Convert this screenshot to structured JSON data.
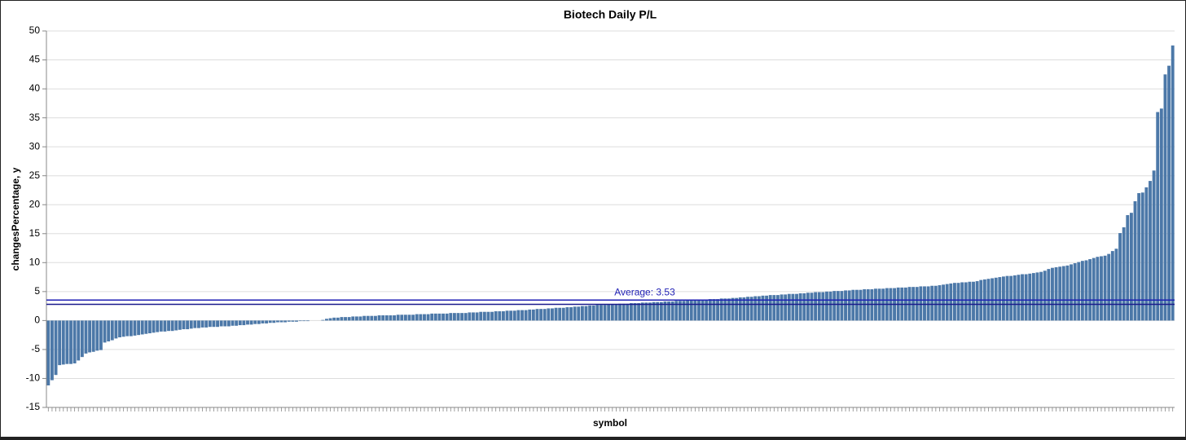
{
  "chart_data": {
    "type": "bar",
    "title": "Biotech Daily P/L",
    "x_label": "symbol",
    "y_label": "changesPercentage, y",
    "color": "#4c78a8",
    "grid": true,
    "ylim": [
      -15,
      50
    ],
    "yticks": [
      -15,
      -10,
      -5,
      0,
      5,
      10,
      15,
      20,
      25,
      30,
      35,
      40,
      45,
      50
    ],
    "rules": [
      {
        "value": 3.53,
        "label": "Average: 3.53",
        "color": "#1f1fb4"
      },
      {
        "value": 2.8,
        "color": "#1a1a8c"
      }
    ],
    "categories": [
      null,
      null,
      null,
      null,
      null,
      null,
      null,
      null,
      null,
      null,
      null,
      null,
      null,
      null,
      null,
      null,
      null,
      null,
      null,
      null,
      null,
      null,
      null,
      null,
      null,
      null,
      null,
      null,
      null,
      null,
      null,
      null,
      null,
      null,
      null,
      null,
      null,
      null,
      null,
      null,
      null,
      null,
      null,
      null,
      null,
      null,
      null,
      null,
      null,
      null,
      null,
      null,
      null,
      null,
      null,
      null,
      null,
      null,
      null,
      null,
      null,
      null,
      null,
      null,
      null,
      null,
      null,
      null,
      null,
      null,
      null,
      null,
      null,
      null,
      null,
      null,
      null,
      null,
      null,
      null,
      null,
      null,
      null,
      null,
      null,
      null,
      null,
      null,
      null,
      null,
      null,
      null,
      null,
      null,
      null,
      null,
      null,
      null,
      null,
      null,
      null,
      null,
      null,
      null,
      null,
      null,
      null,
      null,
      null,
      null,
      null,
      null,
      null,
      null,
      null,
      null,
      null,
      null,
      null,
      null,
      null,
      null,
      null,
      null,
      null,
      null,
      null,
      null,
      null,
      null,
      null,
      null,
      null,
      null,
      null,
      null,
      null,
      null,
      null,
      null,
      null,
      null,
      null,
      null,
      null,
      null,
      null,
      null,
      null,
      null,
      null,
      null,
      null,
      null,
      null,
      null,
      null,
      null,
      null,
      null,
      null,
      null,
      null,
      null,
      null,
      null,
      null,
      null,
      null,
      null,
      null,
      null,
      null,
      null,
      null,
      null,
      null,
      null,
      null,
      null,
      null,
      null,
      null,
      null,
      null,
      null,
      null,
      null,
      null,
      null,
      null,
      null,
      null,
      null,
      null,
      null,
      null,
      null,
      null,
      null,
      null,
      null,
      null,
      null,
      null,
      null,
      null,
      null,
      null,
      null,
      null,
      null,
      null,
      null,
      null,
      null,
      null,
      null,
      null,
      null,
      null,
      null,
      null,
      null,
      null,
      null,
      null,
      null,
      null,
      null,
      null,
      null,
      null,
      null,
      null,
      null,
      null,
      null,
      null,
      null,
      null,
      null,
      null,
      null,
      null,
      null,
      null,
      null,
      null,
      null,
      null,
      null,
      null,
      null,
      null,
      null,
      null,
      null,
      null,
      null,
      null,
      null,
      null,
      null,
      null,
      null,
      null,
      null,
      null,
      null,
      null,
      null,
      null,
      null,
      null,
      null,
      null,
      null,
      null,
      null,
      null,
      null,
      null,
      null,
      null,
      null,
      null,
      null,
      null,
      null,
      null,
      null,
      null,
      null,
      null,
      null,
      null,
      null,
      null,
      null
    ],
    "values": [
      -11.2,
      -10.3,
      -9.4,
      -7.7,
      -7.6,
      -7.5,
      -7.5,
      -7.4,
      -6.9,
      -6.3,
      -5.7,
      -5.5,
      -5.4,
      -5.2,
      -5.1,
      -3.8,
      -3.6,
      -3.4,
      -3.1,
      -2.9,
      -2.8,
      -2.7,
      -2.7,
      -2.6,
      -2.5,
      -2.4,
      -2.3,
      -2.2,
      -2.1,
      -2.0,
      -1.9,
      -1.9,
      -1.8,
      -1.8,
      -1.7,
      -1.6,
      -1.5,
      -1.5,
      -1.4,
      -1.3,
      -1.3,
      -1.2,
      -1.2,
      -1.1,
      -1.1,
      -1.1,
      -1.0,
      -1.0,
      -1.0,
      -0.9,
      -0.9,
      -0.8,
      -0.8,
      -0.7,
      -0.7,
      -0.6,
      -0.6,
      -0.5,
      -0.5,
      -0.4,
      -0.4,
      -0.3,
      -0.3,
      -0.3,
      -0.2,
      -0.2,
      -0.2,
      -0.1,
      -0.1,
      -0.1,
      0,
      0,
      0,
      0.1,
      0.3,
      0.4,
      0.5,
      0.5,
      0.6,
      0.6,
      0.6,
      0.7,
      0.7,
      0.7,
      0.8,
      0.8,
      0.8,
      0.8,
      0.9,
      0.9,
      0.9,
      0.9,
      0.9,
      1.0,
      1.0,
      1.0,
      1.0,
      1.0,
      1.1,
      1.1,
      1.1,
      1.1,
      1.2,
      1.2,
      1.2,
      1.2,
      1.2,
      1.3,
      1.3,
      1.3,
      1.3,
      1.3,
      1.4,
      1.4,
      1.4,
      1.5,
      1.5,
      1.5,
      1.5,
      1.6,
      1.6,
      1.6,
      1.7,
      1.7,
      1.7,
      1.8,
      1.8,
      1.8,
      1.9,
      1.9,
      2.0,
      2.0,
      2.0,
      2.1,
      2.1,
      2.2,
      2.2,
      2.2,
      2.3,
      2.3,
      2.4,
      2.4,
      2.5,
      2.5,
      2.6,
      2.6,
      2.7,
      2.7,
      2.7,
      2.8,
      2.8,
      2.8,
      2.9,
      2.9,
      2.9,
      3.0,
      3.0,
      3.0,
      3.1,
      3.1,
      3.1,
      3.2,
      3.2,
      3.2,
      3.3,
      3.3,
      3.3,
      3.4,
      3.4,
      3.4,
      3.5,
      3.5,
      3.5,
      3.6,
      3.6,
      3.6,
      3.7,
      3.7,
      3.7,
      3.8,
      3.8,
      3.8,
      3.9,
      3.9,
      4.0,
      4.0,
      4.1,
      4.1,
      4.2,
      4.2,
      4.3,
      4.3,
      4.4,
      4.4,
      4.4,
      4.5,
      4.5,
      4.6,
      4.6,
      4.6,
      4.7,
      4.7,
      4.8,
      4.8,
      4.9,
      4.9,
      4.9,
      5.0,
      5.0,
      5.1,
      5.1,
      5.1,
      5.2,
      5.2,
      5.3,
      5.3,
      5.3,
      5.4,
      5.4,
      5.4,
      5.5,
      5.5,
      5.5,
      5.6,
      5.6,
      5.6,
      5.7,
      5.7,
      5.7,
      5.8,
      5.8,
      5.8,
      5.9,
      5.9,
      5.9,
      6.0,
      6.0,
      6.1,
      6.2,
      6.3,
      6.4,
      6.5,
      6.5,
      6.6,
      6.6,
      6.7,
      6.7,
      6.8,
      7.0,
      7.1,
      7.2,
      7.3,
      7.4,
      7.5,
      7.6,
      7.7,
      7.7,
      7.8,
      7.9,
      8.0,
      8.0,
      8.1,
      8.2,
      8.3,
      8.4,
      8.6,
      8.9,
      9.1,
      9.2,
      9.3,
      9.4,
      9.5,
      9.7,
      9.9,
      10.1,
      10.3,
      10.4,
      10.6,
      10.8,
      11.0,
      11.1,
      11.2,
      11.5,
      12.0,
      12.4,
      15.1,
      16.1,
      18.2,
      18.6,
      20.6,
      22.0,
      22.1,
      23.0,
      24.1,
      25.9,
      36.0,
      36.6,
      42.5,
      44.0,
      47.5
    ]
  }
}
